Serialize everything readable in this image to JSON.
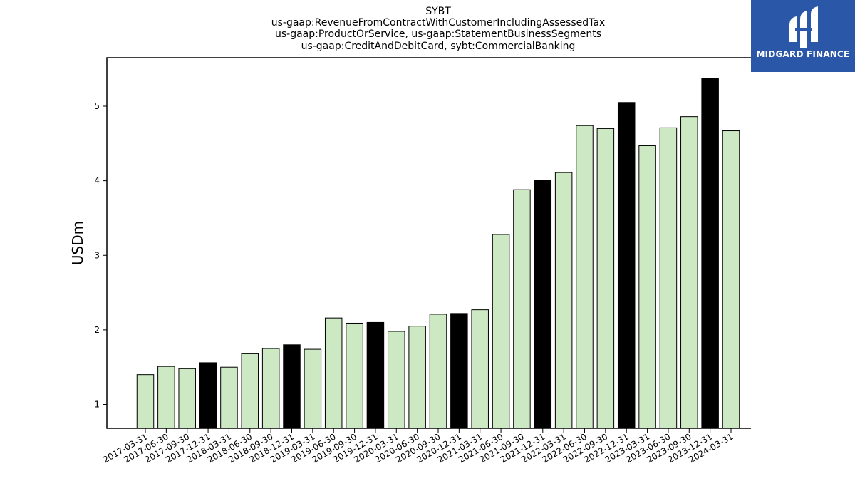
{
  "chart_data": {
    "type": "bar",
    "title_lines": [
      "SYBT",
      "us-gaap:RevenueFromContractWithCustomerIncludingAssessedTax",
      "us-gaap:ProductOrService, us-gaap:StatementBusinessSegments",
      "us-gaap:CreditAndDebitCard, sybt:CommercialBanking"
    ],
    "xlabel": "",
    "ylabel": "USDm",
    "ylim": [
      0.68,
      5.65
    ],
    "yticks": [
      1,
      2,
      3,
      4,
      5
    ],
    "grid": false,
    "categories": [
      "2017-03-31",
      "2017-06-30",
      "2017-09-30",
      "2017-12-31",
      "2018-03-31",
      "2018-06-30",
      "2018-09-30",
      "2018-12-31",
      "2019-03-31",
      "2019-06-30",
      "2019-09-30",
      "2019-12-31",
      "2020-03-31",
      "2020-06-30",
      "2020-09-30",
      "2020-12-31",
      "2021-03-31",
      "2021-06-30",
      "2021-09-30",
      "2021-12-31",
      "2022-03-31",
      "2022-06-30",
      "2022-09-30",
      "2022-12-31",
      "2023-03-31",
      "2023-06-30",
      "2023-09-30",
      "2023-12-31",
      "2024-03-31"
    ],
    "values": [
      1.4,
      1.51,
      1.48,
      1.56,
      1.5,
      1.68,
      1.75,
      1.8,
      1.74,
      2.16,
      2.09,
      2.1,
      1.98,
      2.05,
      2.21,
      2.22,
      2.27,
      3.28,
      3.88,
      4.01,
      4.11,
      4.74,
      4.7,
      5.05,
      4.47,
      4.71,
      4.86,
      5.37,
      4.67
    ],
    "highlight": [
      false,
      false,
      false,
      true,
      false,
      false,
      false,
      true,
      false,
      false,
      false,
      true,
      false,
      false,
      false,
      true,
      false,
      false,
      false,
      true,
      false,
      false,
      false,
      true,
      false,
      false,
      false,
      true,
      false
    ],
    "colors": {
      "bar": "#cde9c4",
      "highlight": "#000000",
      "edge": "#000000"
    }
  },
  "logo": {
    "text": "MIDGARD FINANCE",
    "color": "#2b57a8"
  }
}
